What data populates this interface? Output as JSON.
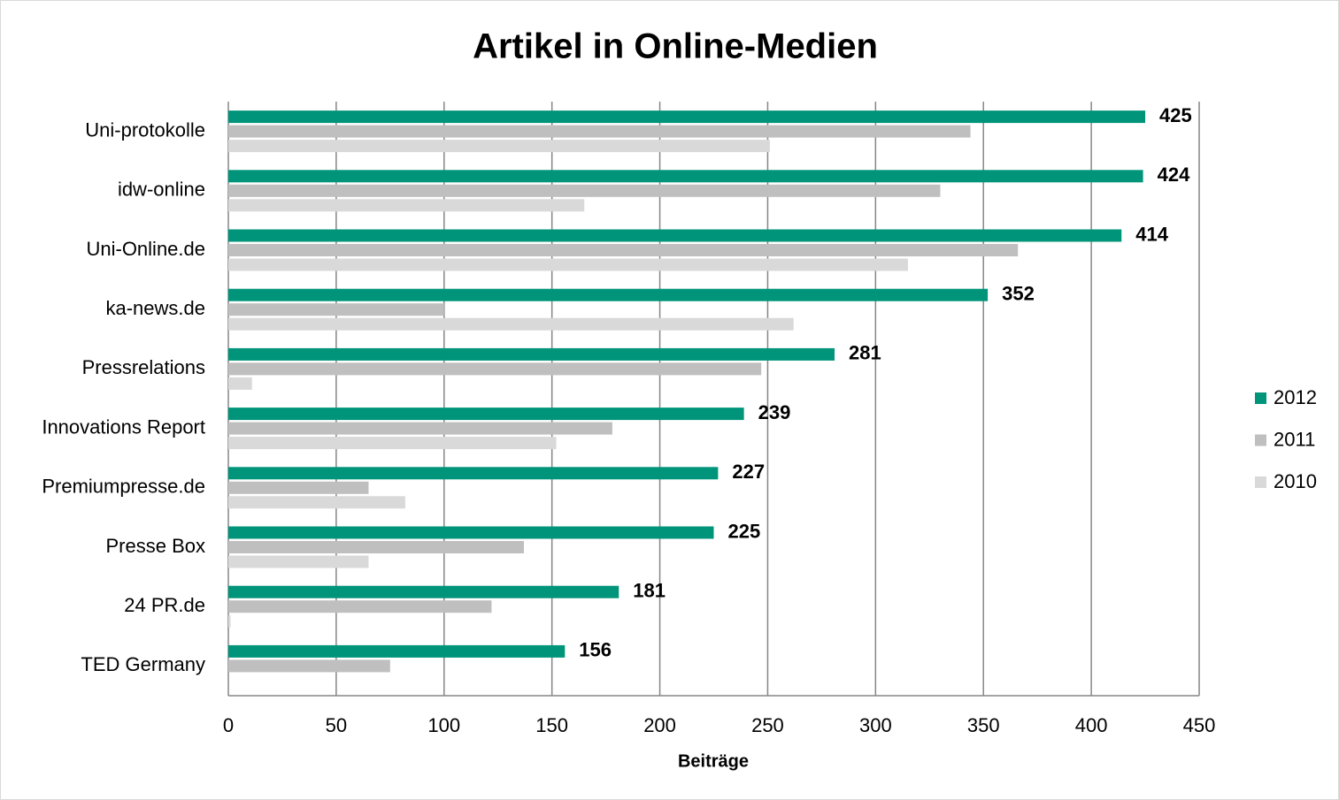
{
  "chart_data": {
    "type": "hbar",
    "title": "Artikel in Online-Medien",
    "x_label": "Beiträge",
    "categories": [
      "Uni-protokolle",
      "idw-online",
      "Uni-Online.de",
      "ka-news.de",
      "Pressrelations",
      "Innovations Report",
      "Premiumpresse.de",
      "Presse Box",
      "24 PR.de",
      "TED Germany"
    ],
    "series": [
      {
        "name": "2012",
        "color": "#00957a",
        "values": [
          425,
          424,
          414,
          352,
          281,
          239,
          227,
          225,
          181,
          156
        ]
      },
      {
        "name": "2011",
        "color": "#bfbfbf",
        "values": [
          344,
          330,
          366,
          100,
          247,
          178,
          65,
          137,
          122,
          75
        ]
      },
      {
        "name": "2010",
        "color": "#d9d9d9",
        "values": [
          251,
          165,
          315,
          262,
          11,
          152,
          82,
          65,
          1,
          0
        ]
      }
    ],
    "xlim": [
      0,
      450
    ],
    "xticks": [
      0,
      50,
      100,
      150,
      200,
      250,
      300,
      350,
      400,
      450
    ],
    "grid": true,
    "legend": "right",
    "value_labels_series": 0
  }
}
